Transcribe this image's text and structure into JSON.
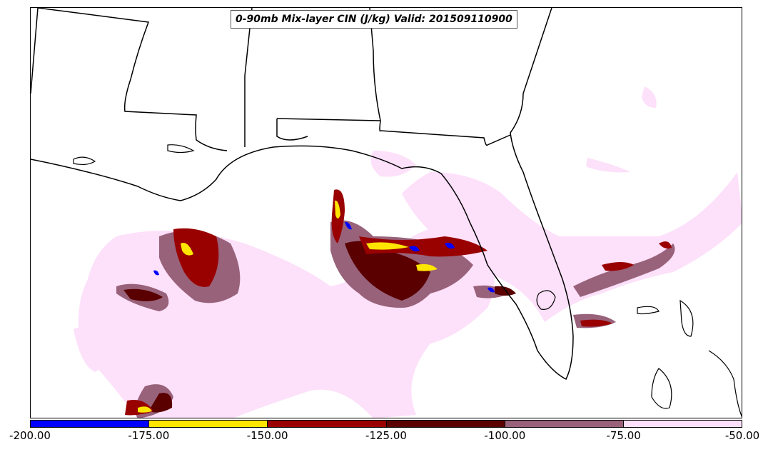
{
  "title": "0-90mb Mix-layer CIN (J/kg) Valid: 201509110900",
  "colorbar": {
    "segments": [
      {
        "range": [
          -200,
          -175
        ],
        "color": "#0000ff"
      },
      {
        "range": [
          -175,
          -150
        ],
        "color": "#ffe600"
      },
      {
        "range": [
          -150,
          -125
        ],
        "color": "#990000"
      },
      {
        "range": [
          -125,
          -100
        ],
        "color": "#5a0000"
      },
      {
        "range": [
          -100,
          -75
        ],
        "color": "#98627a"
      },
      {
        "range": [
          -75,
          -50
        ],
        "color": "#fde0fa"
      }
    ],
    "tick_labels": [
      "-200.00",
      "-175.00",
      "-150.00",
      "-125.00",
      "-100.00",
      "-75.00",
      "-50.00"
    ]
  },
  "colors": {
    "coastline": "#000000",
    "background": "#ffffff"
  }
}
